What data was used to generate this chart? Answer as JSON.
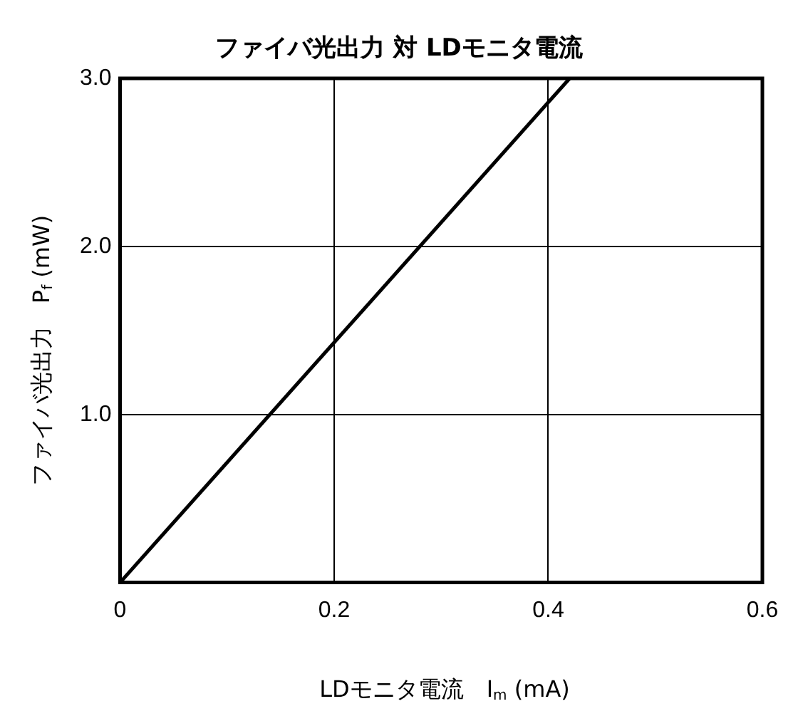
{
  "chart_data": {
    "type": "line",
    "title": "ファイバ光出力 対 LDモニタ電流",
    "xlabel": "LDモニタ電流　I$_{m}$ (mA)",
    "ylabel": "ファイバ光出力　P$_{f}$ (mW)",
    "x": [
      0,
      0.42
    ],
    "series": [
      {
        "color": "#000000",
        "values": [
          0,
          3.0
        ]
      }
    ],
    "xlim": [
      0,
      0.6
    ],
    "xticks": [
      0,
      0.2,
      0.4,
      0.6
    ],
    "ylim": [
      0,
      3.0
    ],
    "yticks": [
      {
        "value": 0,
        "label": null
      },
      {
        "value": 1,
        "label": "1.0"
      },
      {
        "value": 2,
        "label": "2.0"
      },
      {
        "value": 3,
        "label": "3.0"
      }
    ],
    "grid": true,
    "legend": false
  }
}
